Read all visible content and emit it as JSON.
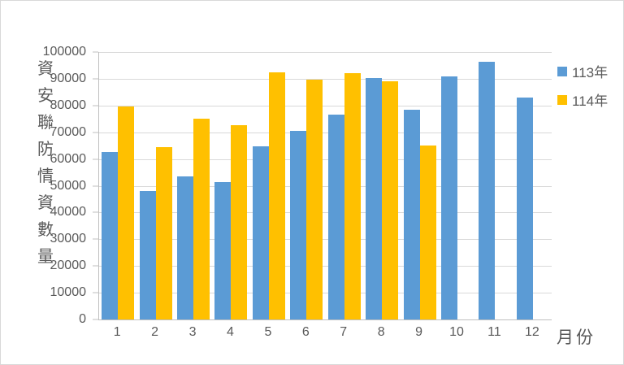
{
  "chart_data": {
    "type": "bar",
    "title": "",
    "xlabel": "月份",
    "ylabel": "資安聯防情資數量",
    "categories": [
      "1",
      "2",
      "3",
      "4",
      "5",
      "6",
      "7",
      "8",
      "9",
      "10",
      "11",
      "12"
    ],
    "series": [
      {
        "name": "113年",
        "color": "#5B9BD5",
        "values": [
          62600,
          47900,
          53500,
          51400,
          64800,
          70500,
          76500,
          90400,
          78300,
          90800,
          96300,
          83000
        ]
      },
      {
        "name": "114年",
        "color": "#FFC000",
        "values": [
          79500,
          64500,
          75200,
          72700,
          92500,
          89600,
          92100,
          89200,
          65100,
          null,
          null,
          null
        ]
      }
    ],
    "ylim": [
      0,
      100000
    ],
    "ytick_step": 10000,
    "ytick_labels": [
      "0",
      "10000",
      "20000",
      "30000",
      "40000",
      "50000",
      "60000",
      "70000",
      "80000",
      "90000",
      "100000"
    ],
    "grid": true,
    "legend_position": "top-right"
  },
  "colors": {
    "text": "#595959",
    "gridline": "#D9D9D9",
    "axis_line": "#BFBFBF",
    "background": "#FFFFFF",
    "border": "#D9D9D9"
  }
}
